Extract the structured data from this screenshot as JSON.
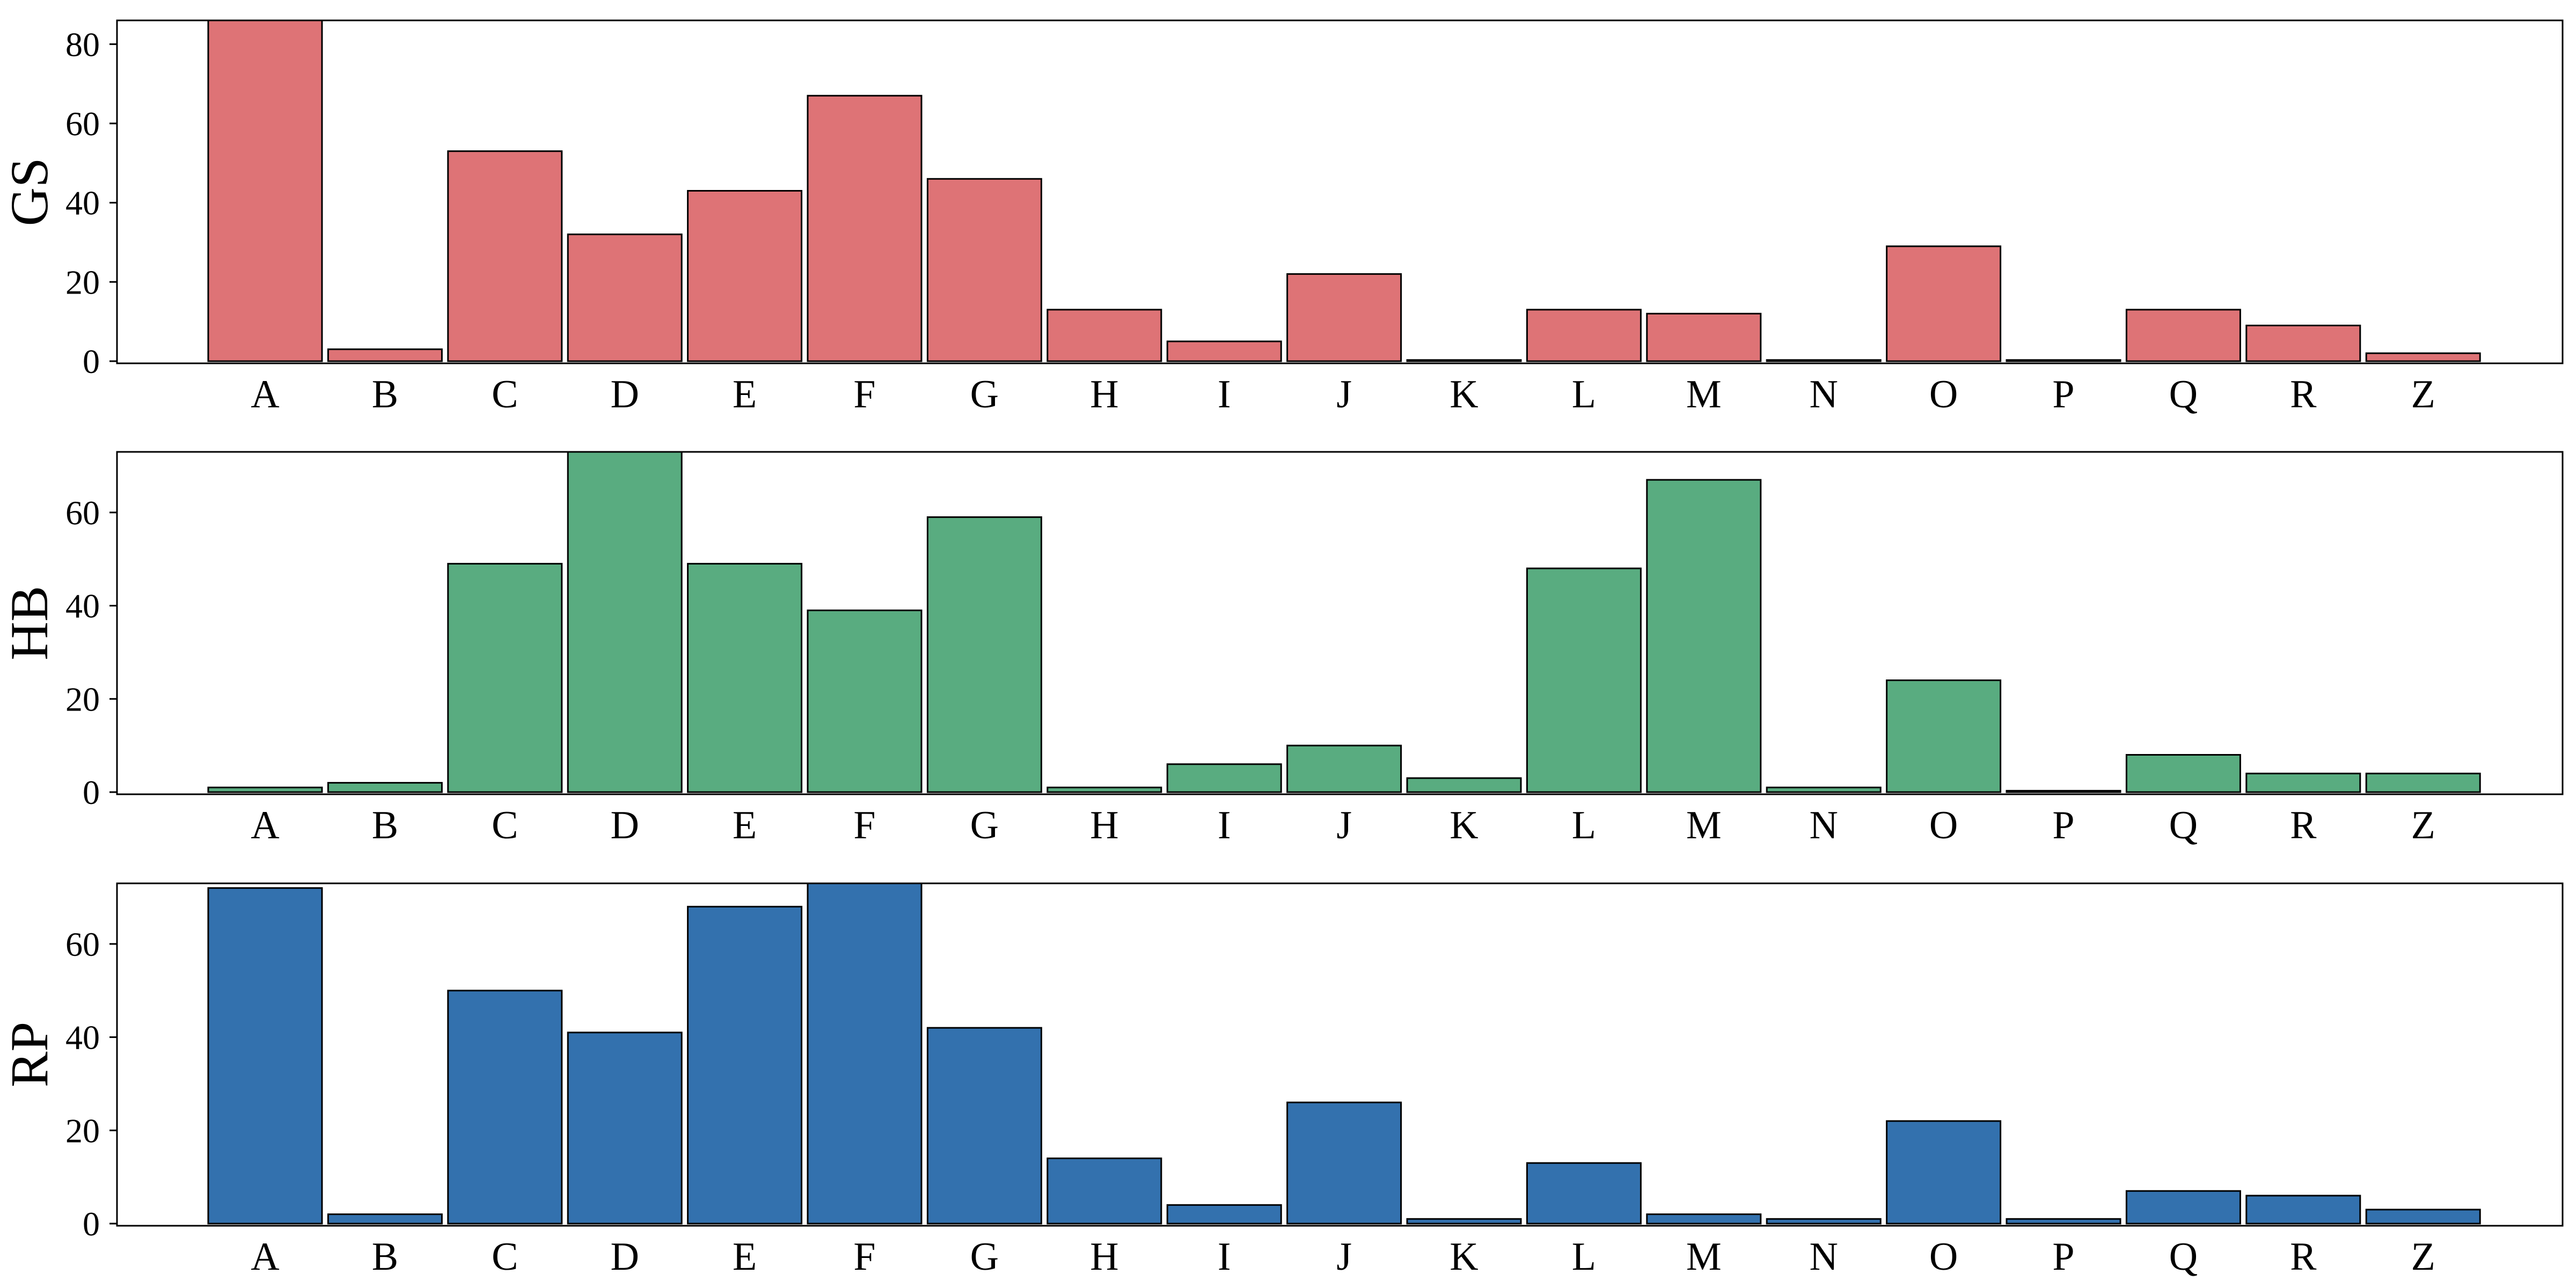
{
  "chart_data": [
    {
      "type": "bar",
      "ylabel": "GS",
      "color": "#DE7376",
      "categories": [
        "A",
        "B",
        "C",
        "D",
        "E",
        "F",
        "G",
        "H",
        "I",
        "J",
        "K",
        "L",
        "M",
        "N",
        "O",
        "P",
        "Q",
        "R",
        "Z"
      ],
      "values": [
        86,
        3,
        53,
        32,
        43,
        67,
        46,
        13,
        5,
        22,
        0.3,
        13,
        12,
        0.3,
        29,
        0.3,
        13,
        9,
        2
      ],
      "yticks": [
        0,
        20,
        40,
        60,
        80
      ],
      "ylim": [
        0,
        86
      ]
    },
    {
      "type": "bar",
      "ylabel": "HB",
      "color": "#59AC80",
      "categories": [
        "A",
        "B",
        "C",
        "D",
        "E",
        "F",
        "G",
        "H",
        "I",
        "J",
        "K",
        "L",
        "M",
        "N",
        "O",
        "P",
        "Q",
        "R",
        "Z"
      ],
      "values": [
        1,
        2,
        49,
        73,
        49,
        39,
        59,
        1,
        6,
        10,
        3,
        48,
        67,
        1,
        24,
        0.3,
        8,
        4,
        4
      ],
      "yticks": [
        0,
        20,
        40,
        60
      ],
      "ylim": [
        0,
        73
      ]
    },
    {
      "type": "bar",
      "ylabel": "RP",
      "color": "#3371AE",
      "categories": [
        "A",
        "B",
        "C",
        "D",
        "E",
        "F",
        "G",
        "H",
        "I",
        "J",
        "K",
        "L",
        "M",
        "N",
        "O",
        "P",
        "Q",
        "R",
        "Z"
      ],
      "values": [
        72,
        2,
        50,
        41,
        68,
        73,
        42,
        14,
        4,
        26,
        1,
        13,
        2,
        1,
        22,
        1,
        7,
        6,
        3
      ],
      "yticks": [
        0,
        20,
        40,
        60
      ],
      "ylim": [
        0,
        73
      ]
    }
  ]
}
